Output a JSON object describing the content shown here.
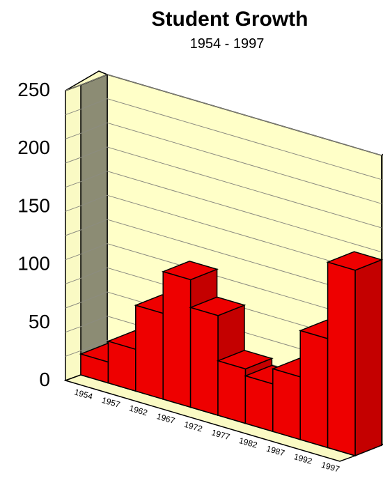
{
  "chart_data": {
    "type": "bar",
    "title": "Student Growth",
    "subtitle": "1954 - 1997",
    "xlabel": "",
    "ylabel": "",
    "categories": [
      "1954",
      "1957",
      "1962",
      "1967",
      "1972",
      "1977",
      "1982",
      "1987",
      "1992",
      "1997"
    ],
    "values": [
      18,
      36,
      74,
      110,
      86,
      47,
      41,
      54,
      94,
      160
    ],
    "yticks": [
      "0",
      "50",
      "100",
      "150",
      "200",
      "250"
    ],
    "ylim": [
      0,
      250
    ],
    "grid": true,
    "legend": "none",
    "colors": {
      "bar_front": "#ee0000",
      "bar_top": "#ee0000",
      "bar_side": "#c40000",
      "back_wall": "#ffffc8",
      "side_wall": "#8c8c74",
      "left_panel": "#fafac4",
      "floor": "#fafac4",
      "gridline": "#8c8c80",
      "outline": "#000000"
    }
  }
}
